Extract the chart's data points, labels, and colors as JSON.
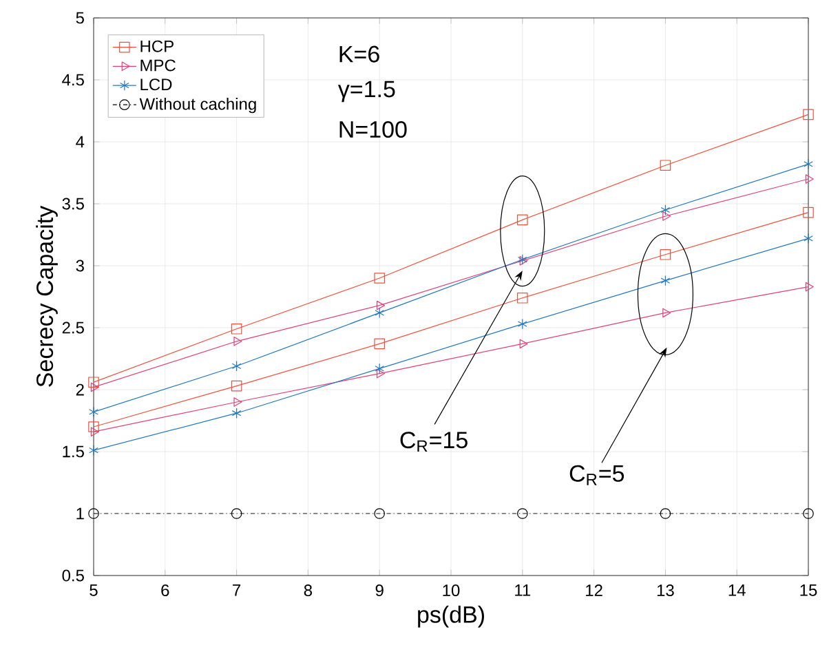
{
  "chart_data": {
    "type": "line",
    "xlabel": "ps(dB)",
    "ylabel": "Secrecy Capacity",
    "x": [
      5,
      7,
      9,
      11,
      13,
      15
    ],
    "series": [
      {
        "name": "HCP",
        "color": "#f0503c",
        "marker": "square",
        "values": [
          2.06,
          2.49,
          2.9,
          3.37,
          3.81,
          4.22
        ]
      },
      {
        "name": "MPC",
        "color": "#e0407a",
        "marker": "triangle",
        "values": [
          2.02,
          2.39,
          2.68,
          3.04,
          3.4,
          3.7
        ]
      },
      {
        "name": "LCD",
        "color": "#2278c0",
        "marker": "cross",
        "values": [
          1.82,
          2.19,
          2.62,
          3.05,
          3.45,
          3.82
        ]
      },
      {
        "name": "Without caching",
        "color": "#000000",
        "marker": "circle",
        "line_style": "dashdot",
        "values": [
          1,
          1,
          1,
          1,
          1,
          1
        ]
      },
      {
        "color": "#f0503c",
        "marker": "square",
        "values": [
          1.7,
          2.03,
          2.37,
          2.74,
          3.09,
          3.43
        ]
      },
      {
        "color": "#e0407a",
        "marker": "triangle",
        "values": [
          1.66,
          1.9,
          2.13,
          2.37,
          2.62,
          2.83
        ]
      },
      {
        "color": "#2278c0",
        "marker": "cross",
        "values": [
          1.51,
          1.81,
          2.17,
          2.53,
          2.88,
          3.22
        ]
      }
    ],
    "annotations": [
      "K=6",
      "γ=1.5",
      "N=100",
      "C$_{R}$=15",
      "C$_{R}$=5"
    ],
    "xlim": [
      5,
      15
    ],
    "xticks": [
      5,
      6,
      7,
      8,
      9,
      10,
      11,
      12,
      13,
      14,
      15
    ],
    "ylim": [
      0.5,
      5
    ],
    "yticks": [
      0.5,
      1,
      1.5,
      2,
      2.5,
      3,
      3.5,
      4,
      4.5,
      5
    ],
    "grid": true,
    "legend": "top left"
  }
}
